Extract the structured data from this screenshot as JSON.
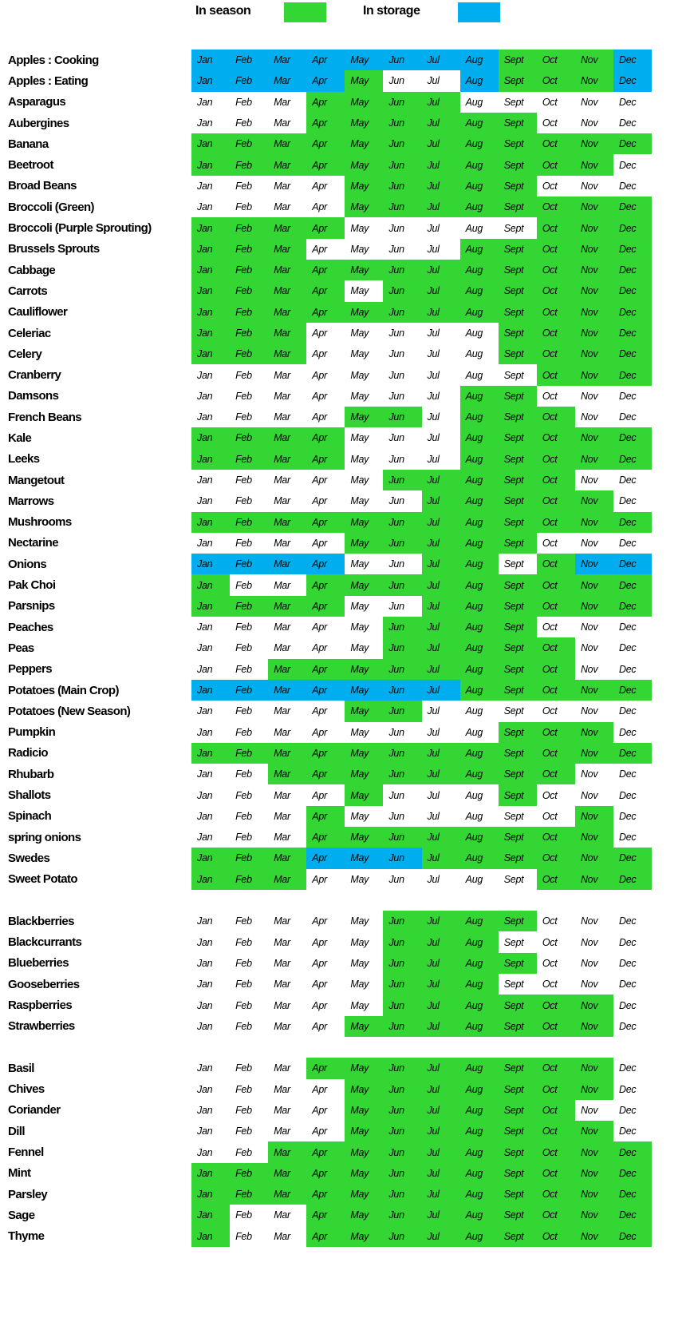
{
  "legend": {
    "in_season_label": "In season",
    "in_storage_label": "In storage"
  },
  "colors": {
    "in_season": "#33d633",
    "in_storage": "#00aeef",
    "none": "#ffffff"
  },
  "chart_data": {
    "type": "heatmap",
    "columns": [
      "Jan",
      "Feb",
      "Mar",
      "Apr",
      "May",
      "Jun",
      "Jul",
      "Aug",
      "Sept",
      "Oct",
      "Nov",
      "Dec"
    ],
    "cell_states": {
      "G": "in season",
      "B": "in storage",
      "W": "not available"
    },
    "legend": [
      {
        "label": "In season",
        "color": "#33d633"
      },
      {
        "label": "In storage",
        "color": "#00aeef"
      }
    ],
    "groups": [
      {
        "rows": [
          {
            "label": "Apples : Cooking",
            "months": "BBBBBBBBGGGB"
          },
          {
            "label": "Apples : Eating",
            "months": "BBBBGWWBGGGB"
          },
          {
            "label": "Asparagus",
            "months": "WWWGGGGWWWWW"
          },
          {
            "label": "Aubergines",
            "months": "WWWGGGGGGWWW"
          },
          {
            "label": "Banana",
            "months": "GGGGGGGGGGGG"
          },
          {
            "label": "Beetroot",
            "months": "GGGGGGGGGGGW"
          },
          {
            "label": "Broad Beans",
            "months": "WWWWGGGGGWWW"
          },
          {
            "label": "Broccoli (Green)",
            "months": "WWWWGGGGGGGG"
          },
          {
            "label": "Broccoli (Purple Sprouting)",
            "months": "GGGGWWWWWGGG"
          },
          {
            "label": "Brussels Sprouts",
            "months": "GGGWWWWGGGGG"
          },
          {
            "label": "Cabbage",
            "months": "GGGGGGGGGGGG"
          },
          {
            "label": "Carrots",
            "months": "GGGGWGGGGGGG"
          },
          {
            "label": "Cauliflower",
            "months": "GGGGGGGGGGGG"
          },
          {
            "label": "Celeriac",
            "months": "GGGWWWWWGGGG"
          },
          {
            "label": "Celery",
            "months": "GGGWWWWWGGGG"
          },
          {
            "label": "Cranberry",
            "months": "WWWWWWWWWGGG"
          },
          {
            "label": "Damsons",
            "months": "WWWWWWWGGWWW"
          },
          {
            "label": "French Beans",
            "months": "WWWWGGWGGGWW"
          },
          {
            "label": "Kale",
            "months": "GGGGWWWGGGGG"
          },
          {
            "label": "Leeks",
            "months": "GGGGWWWGGGGG"
          },
          {
            "label": "Mangetout",
            "months": "WWWWWGGGGGWW"
          },
          {
            "label": "Marrows",
            "months": "WWWWWWGGGGGW"
          },
          {
            "label": "Mushrooms",
            "months": "GGGGGGGGGGGG"
          },
          {
            "label": "Nectarine",
            "months": "WWWWGGGGGWWW"
          },
          {
            "label": "Onions",
            "months": "BBBBWWGGWGBB"
          },
          {
            "label": "Pak Choi",
            "months": "GWWGGGGGGGGG"
          },
          {
            "label": "Parsnips",
            "months": "GGGGWWGGGGGG"
          },
          {
            "label": "Peaches",
            "months": "WWWWWGGGGWWW"
          },
          {
            "label": "Peas",
            "months": "WWWWWGGGGGWW"
          },
          {
            "label": "Peppers",
            "months": "WWGGGGGGGGWW"
          },
          {
            "label": "Potatoes (Main Crop)",
            "months": "BBBBBBBGGGGG"
          },
          {
            "label": "Potatoes (New Season)",
            "months": "WWWWGGWWWWWW"
          },
          {
            "label": "Pumpkin",
            "months": "WWWWWWWWGGGW"
          },
          {
            "label": "Radicio",
            "months": "GGGGGGGGGGGG"
          },
          {
            "label": "Rhubarb",
            "months": "WWGGGGGGGGWW"
          },
          {
            "label": "Shallots",
            "months": "WWWWGWWWGWWW"
          },
          {
            "label": "Spinach",
            "months": "WWWGWWWWWWGW"
          },
          {
            "label": "spring onions",
            "months": "WWWGGGGGGGGW"
          },
          {
            "label": "Swedes",
            "months": "GGGBBBGGGGGG"
          },
          {
            "label": "Sweet Potato",
            "months": "GGGWWWWWWGGG"
          }
        ]
      },
      {
        "rows": [
          {
            "label": "Blackberries",
            "months": "WWWWWGGGGWWW"
          },
          {
            "label": "Blackcurrants",
            "months": "WWWWWGGGWWWW"
          },
          {
            "label": "Blueberries",
            "months": "WWWWWGGGGWWW"
          },
          {
            "label": "Gooseberries",
            "months": "WWWWWGGGWWWW"
          },
          {
            "label": "Raspberries",
            "months": "WWWWWGGGGGGW"
          },
          {
            "label": "Strawberries",
            "months": "WWWWGGGGGGGW"
          }
        ]
      },
      {
        "rows": [
          {
            "label": "Basil",
            "months": "WWWGGGGGGGGW"
          },
          {
            "label": "Chives",
            "months": "WWWWGGGGGGGW"
          },
          {
            "label": "Coriander",
            "months": "WWWWGGGGGGWW"
          },
          {
            "label": "Dill",
            "months": "WWWWGGGGGGGW"
          },
          {
            "label": "Fennel",
            "months": "WWGGGGGGGGGG"
          },
          {
            "label": "Mint",
            "months": "GGGGGGGGGGGG"
          },
          {
            "label": "Parsley",
            "months": "GGGGGGGGGGGG"
          },
          {
            "label": "Sage",
            "months": "GWWGGGGGGGGG"
          },
          {
            "label": "Thyme",
            "months": "GWWGGGGGGGGG"
          }
        ]
      }
    ]
  }
}
